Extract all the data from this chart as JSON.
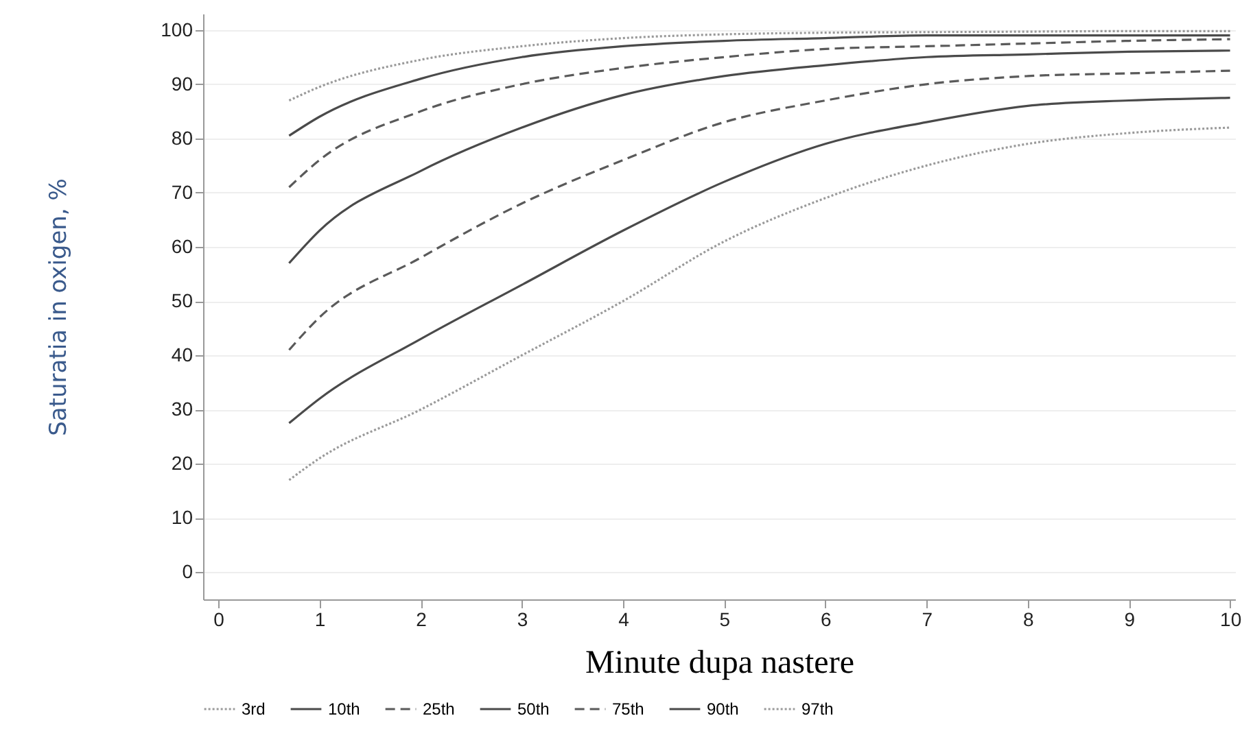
{
  "chart_data": {
    "type": "line",
    "xlabel": "Minute dupa nastere",
    "ylabel": "Saturatia in oxigen, %",
    "x": [
      0.7,
      1,
      2,
      3,
      4,
      5,
      6,
      7,
      8,
      9,
      10
    ],
    "xlim": [
      -0.15,
      10.05
    ],
    "xticks": [
      0,
      1,
      2,
      3,
      4,
      5,
      6,
      7,
      8,
      9,
      10
    ],
    "ylim": [
      -5,
      103
    ],
    "yticks": [
      0,
      10,
      20,
      30,
      40,
      50,
      60,
      70,
      80,
      90,
      100
    ],
    "grid": "y",
    "legend": "bottom",
    "series": [
      {
        "name": "3rd",
        "color": "#9a9a9a",
        "line_style": "dotted",
        "values": [
          17,
          21,
          30,
          40,
          50,
          61,
          69,
          75,
          79,
          81,
          82
        ]
      },
      {
        "name": "10th",
        "color": "#4a4a4a",
        "line_style": "solid",
        "values": [
          27.5,
          32,
          43,
          53,
          63,
          72,
          79,
          83,
          86,
          87,
          87.5
        ]
      },
      {
        "name": "25th",
        "color": "#5a5a5a",
        "line_style": "dashed",
        "values": [
          41,
          47,
          58,
          68,
          76,
          83,
          87,
          90,
          91.5,
          92,
          92.5
        ]
      },
      {
        "name": "50th",
        "color": "#4a4a4a",
        "line_style": "solid",
        "values": [
          57,
          63,
          74,
          82,
          88,
          91.5,
          93.5,
          95,
          95.5,
          96,
          96.2
        ]
      },
      {
        "name": "75th",
        "color": "#5a5a5a",
        "line_style": "dashed",
        "values": [
          71,
          76,
          85,
          90,
          93,
          95,
          96.5,
          97,
          97.5,
          98,
          98.3
        ]
      },
      {
        "name": "90th",
        "color": "#4a4a4a",
        "line_style": "solid",
        "values": [
          80.5,
          84,
          91,
          95,
          97,
          98,
          98.5,
          99,
          99,
          99,
          99
        ]
      },
      {
        "name": "97th",
        "color": "#9a9a9a",
        "line_style": "dotted",
        "values": [
          87,
          89.5,
          94.5,
          97,
          98.5,
          99.2,
          99.5,
          99.6,
          99.7,
          99.8,
          99.8
        ]
      }
    ]
  }
}
